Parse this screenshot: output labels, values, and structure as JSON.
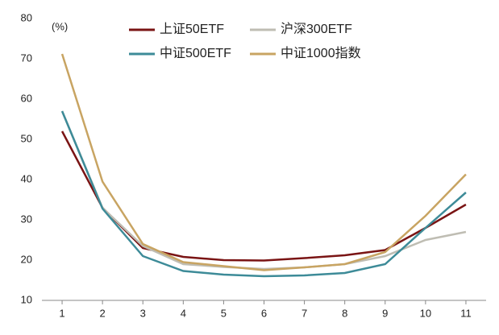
{
  "chart_data": {
    "type": "line",
    "y_label": "(%)",
    "x": [
      1,
      2,
      3,
      4,
      5,
      6,
      7,
      8,
      9,
      10,
      11
    ],
    "xlim": [
      0.5,
      11.5
    ],
    "xticks": [
      1,
      2,
      3,
      4,
      5,
      6,
      7,
      8,
      9,
      10,
      11
    ],
    "ylim": [
      10,
      80
    ],
    "yticks": [
      10,
      20,
      30,
      40,
      50,
      60,
      70,
      80
    ],
    "grid": false,
    "legend": "top",
    "series": [
      {
        "name": "上证50ETF",
        "color": "#7a1414",
        "values": [
          52,
          33,
          23,
          20.8,
          20,
          19.9,
          20.5,
          21.2,
          22.5,
          28,
          33.8
        ]
      },
      {
        "name": "沪深300ETF",
        "color": "#bfbdb3",
        "values": [
          57,
          33,
          23.5,
          19,
          18.3,
          17.8,
          18.2,
          19,
          21,
          25,
          27
        ]
      },
      {
        "name": "中证500ETF",
        "color": "#3d8b98",
        "values": [
          57,
          32.8,
          21,
          17.3,
          16.4,
          16,
          16.2,
          16.8,
          19,
          28,
          36.8
        ]
      },
      {
        "name": "中证1000指数",
        "color": "#c8a462",
        "values": [
          71.2,
          39.5,
          24,
          19.5,
          18.5,
          17.5,
          18.2,
          19,
          22,
          31,
          41.3
        ]
      }
    ]
  }
}
